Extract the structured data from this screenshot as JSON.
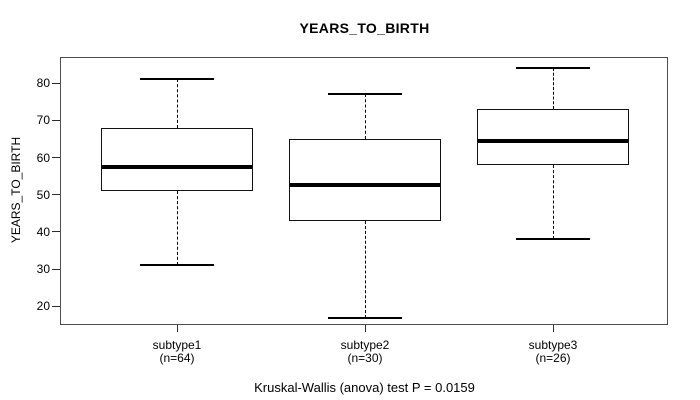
{
  "title": "YEARS_TO_BIRTH",
  "y_axis": {
    "label": "YEARS_TO_BIRTH",
    "tick_labels": [
      "20",
      "30",
      "40",
      "50",
      "60",
      "70",
      "80"
    ]
  },
  "caption": "Kruskal-Wallis (anova) test P = 0.0159",
  "chart_data": {
    "type": "boxplot",
    "title": "YEARS_TO_BIRTH",
    "xlabel": "",
    "ylabel": "YEARS_TO_BIRTH",
    "ylim": [
      15,
      87
    ],
    "yticks": [
      20,
      30,
      40,
      50,
      60,
      70,
      80
    ],
    "grid": false,
    "legend": "none",
    "annotation": "Kruskal-Wallis (anova) test P = 0.0159",
    "groups": [
      {
        "label": "subtype1",
        "n_label": "(n=64)",
        "n": 64,
        "whisker_low": 31,
        "q1": 51,
        "median": 57.5,
        "q3": 68,
        "whisker_high": 81
      },
      {
        "label": "subtype2",
        "n_label": "(n=30)",
        "n": 30,
        "whisker_low": 17,
        "q1": 43,
        "median": 52.5,
        "q3": 65,
        "whisker_high": 77
      },
      {
        "label": "subtype3",
        "n_label": "(n=26)",
        "n": 26,
        "whisker_low": 38,
        "q1": 58,
        "median": 64.5,
        "q3": 73,
        "whisker_high": 84
      }
    ],
    "colors": {
      "line": "#000000",
      "frame": "#4d4d4d",
      "background": "#ffffff",
      "text": "#000000"
    }
  }
}
